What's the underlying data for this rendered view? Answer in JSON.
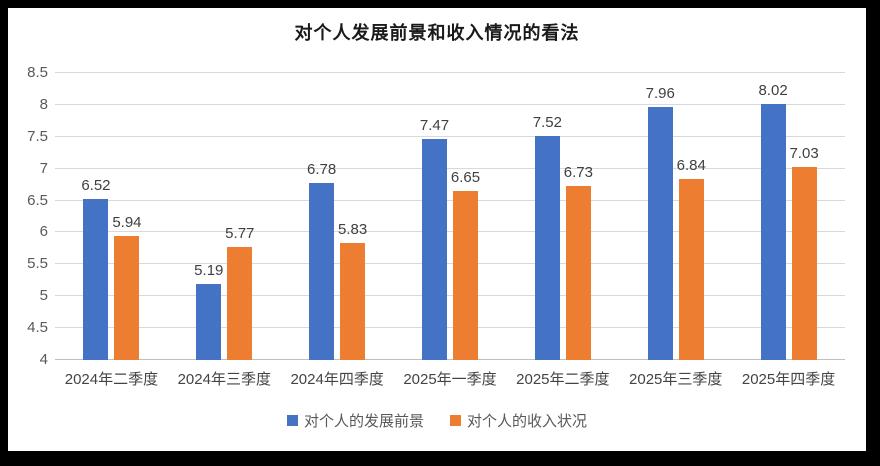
{
  "title": "对个人发展前景和收入情况的看法",
  "colors": {
    "series_blue": "#4472C4",
    "series_orange": "#ED7D31",
    "gridline": "#D9D9D9",
    "axis_line": "#BFBFBF",
    "y_tick_label": "#595959",
    "x_tick_label": "#444444",
    "data_label": "#404040",
    "title_text": "#1A1A1A",
    "background": "#FFFFFF",
    "matte": "#000000"
  },
  "chart_data": {
    "type": "bar",
    "title": "对个人发展前景和收入情况的看法",
    "categories": [
      "2024年二季度",
      "2024年三季度",
      "2024年四季度",
      "2025年一季度",
      "2025年二季度",
      "2025年三季度",
      "2025年四季度"
    ],
    "series": [
      {
        "name": "对个人的发展前景",
        "color": "#4472C4",
        "values": [
          6.52,
          5.19,
          6.78,
          7.47,
          7.52,
          7.96,
          8.02
        ]
      },
      {
        "name": "对个人的收入状况",
        "color": "#ED7D31",
        "values": [
          5.94,
          5.77,
          5.83,
          6.65,
          6.73,
          6.84,
          7.03
        ]
      }
    ],
    "xlabel": "",
    "ylabel": "",
    "ylim": [
      4,
      8.5
    ],
    "ytick_step": 0.5,
    "ytick_labels": [
      "4",
      "4.5",
      "5",
      "5.5",
      "6",
      "6.5",
      "7",
      "7.5",
      "8",
      "8.5"
    ],
    "grid": true,
    "data_labels": true,
    "legend_position": "bottom"
  }
}
